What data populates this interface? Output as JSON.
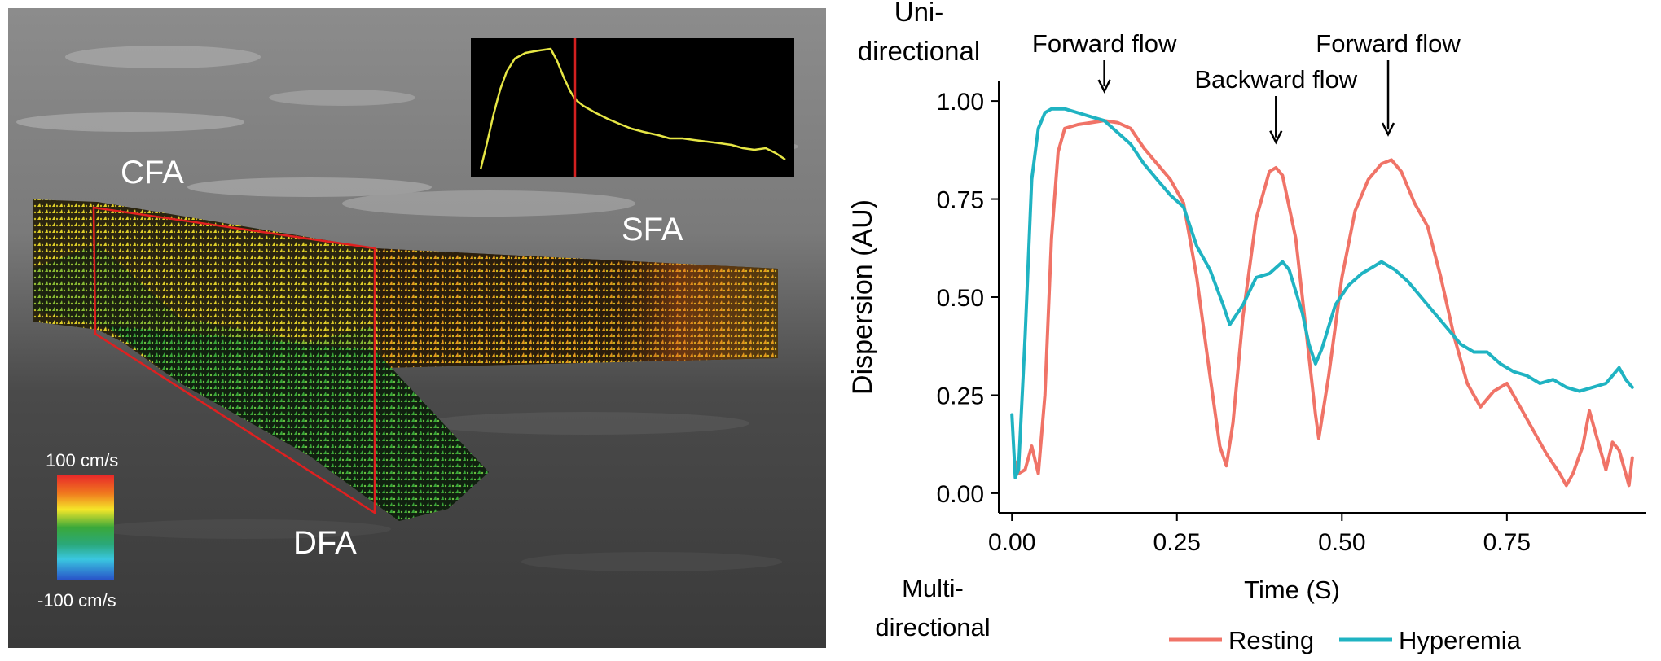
{
  "ultrasound": {
    "labels": {
      "cfa": "CFA",
      "sfa": "SFA",
      "dfa": "DFA"
    },
    "colorbar": {
      "max_label": "100 cm/s",
      "min_label": "-100 cm/s"
    },
    "colors": {
      "roi_outline": "#e02020",
      "inset_trace": "#e6e645",
      "inset_marker": "#d42020"
    }
  },
  "chart_data": {
    "type": "line",
    "xlabel": "Time (S)",
    "ylabel": "Dispersion (AU)",
    "xlim": [
      -0.02,
      0.96
    ],
    "ylim": [
      -0.05,
      1.05
    ],
    "x_ticks": [
      "0.00",
      "0.25",
      "0.50",
      "0.75"
    ],
    "y_ticks": [
      "0.00",
      "0.25",
      "0.50",
      "0.75",
      "1.00"
    ],
    "y_top_label": [
      "Uni-",
      "directional"
    ],
    "y_bottom_label": [
      "Multi-",
      "directional"
    ],
    "annotations": [
      {
        "text": "Forward flow",
        "x": 0.14,
        "y": 1.0
      },
      {
        "text": "Backward flow",
        "x": 0.4,
        "y": 0.87
      },
      {
        "text": "Forward flow",
        "x": 0.57,
        "y": 0.89
      }
    ],
    "legend": {
      "position": "bottom"
    },
    "series": [
      {
        "name": "Resting",
        "color": "#f07367",
        "points": [
          [
            0.005,
            0.08
          ],
          [
            0.01,
            0.05
          ],
          [
            0.02,
            0.06
          ],
          [
            0.03,
            0.12
          ],
          [
            0.04,
            0.05
          ],
          [
            0.05,
            0.25
          ],
          [
            0.06,
            0.65
          ],
          [
            0.07,
            0.87
          ],
          [
            0.08,
            0.93
          ],
          [
            0.1,
            0.94
          ],
          [
            0.12,
            0.945
          ],
          [
            0.14,
            0.95
          ],
          [
            0.16,
            0.945
          ],
          [
            0.18,
            0.93
          ],
          [
            0.2,
            0.88
          ],
          [
            0.22,
            0.84
          ],
          [
            0.24,
            0.8
          ],
          [
            0.26,
            0.74
          ],
          [
            0.28,
            0.55
          ],
          [
            0.3,
            0.3
          ],
          [
            0.315,
            0.12
          ],
          [
            0.325,
            0.07
          ],
          [
            0.335,
            0.18
          ],
          [
            0.35,
            0.45
          ],
          [
            0.37,
            0.7
          ],
          [
            0.39,
            0.82
          ],
          [
            0.4,
            0.83
          ],
          [
            0.41,
            0.81
          ],
          [
            0.43,
            0.65
          ],
          [
            0.45,
            0.35
          ],
          [
            0.46,
            0.2
          ],
          [
            0.465,
            0.14
          ],
          [
            0.48,
            0.3
          ],
          [
            0.5,
            0.55
          ],
          [
            0.52,
            0.72
          ],
          [
            0.54,
            0.8
          ],
          [
            0.56,
            0.84
          ],
          [
            0.575,
            0.85
          ],
          [
            0.59,
            0.82
          ],
          [
            0.61,
            0.74
          ],
          [
            0.63,
            0.68
          ],
          [
            0.65,
            0.55
          ],
          [
            0.67,
            0.4
          ],
          [
            0.69,
            0.28
          ],
          [
            0.71,
            0.22
          ],
          [
            0.73,
            0.26
          ],
          [
            0.75,
            0.28
          ],
          [
            0.77,
            0.22
          ],
          [
            0.79,
            0.16
          ],
          [
            0.81,
            0.1
          ],
          [
            0.83,
            0.05
          ],
          [
            0.84,
            0.02
          ],
          [
            0.85,
            0.05
          ],
          [
            0.865,
            0.12
          ],
          [
            0.875,
            0.21
          ],
          [
            0.885,
            0.15
          ],
          [
            0.9,
            0.06
          ],
          [
            0.91,
            0.13
          ],
          [
            0.92,
            0.11
          ],
          [
            0.93,
            0.05
          ],
          [
            0.935,
            0.02
          ],
          [
            0.94,
            0.09
          ]
        ]
      },
      {
        "name": "Hyperemia",
        "color": "#1fb3c2",
        "points": [
          [
            0.0,
            0.2
          ],
          [
            0.005,
            0.04
          ],
          [
            0.01,
            0.06
          ],
          [
            0.02,
            0.4
          ],
          [
            0.03,
            0.8
          ],
          [
            0.04,
            0.93
          ],
          [
            0.05,
            0.97
          ],
          [
            0.06,
            0.98
          ],
          [
            0.08,
            0.98
          ],
          [
            0.1,
            0.97
          ],
          [
            0.12,
            0.96
          ],
          [
            0.14,
            0.95
          ],
          [
            0.16,
            0.92
          ],
          [
            0.18,
            0.89
          ],
          [
            0.2,
            0.84
          ],
          [
            0.22,
            0.8
          ],
          [
            0.24,
            0.76
          ],
          [
            0.26,
            0.73
          ],
          [
            0.28,
            0.63
          ],
          [
            0.3,
            0.57
          ],
          [
            0.32,
            0.48
          ],
          [
            0.33,
            0.43
          ],
          [
            0.35,
            0.48
          ],
          [
            0.37,
            0.55
          ],
          [
            0.39,
            0.56
          ],
          [
            0.41,
            0.59
          ],
          [
            0.42,
            0.57
          ],
          [
            0.44,
            0.46
          ],
          [
            0.45,
            0.38
          ],
          [
            0.46,
            0.33
          ],
          [
            0.47,
            0.37
          ],
          [
            0.49,
            0.48
          ],
          [
            0.51,
            0.53
          ],
          [
            0.53,
            0.56
          ],
          [
            0.55,
            0.58
          ],
          [
            0.56,
            0.59
          ],
          [
            0.57,
            0.58
          ],
          [
            0.58,
            0.57
          ],
          [
            0.6,
            0.54
          ],
          [
            0.62,
            0.5
          ],
          [
            0.64,
            0.46
          ],
          [
            0.66,
            0.42
          ],
          [
            0.68,
            0.38
          ],
          [
            0.7,
            0.36
          ],
          [
            0.72,
            0.36
          ],
          [
            0.74,
            0.33
          ],
          [
            0.76,
            0.31
          ],
          [
            0.78,
            0.3
          ],
          [
            0.8,
            0.28
          ],
          [
            0.82,
            0.29
          ],
          [
            0.84,
            0.27
          ],
          [
            0.86,
            0.26
          ],
          [
            0.88,
            0.27
          ],
          [
            0.9,
            0.28
          ],
          [
            0.91,
            0.3
          ],
          [
            0.92,
            0.32
          ],
          [
            0.93,
            0.29
          ],
          [
            0.94,
            0.27
          ]
        ]
      }
    ]
  }
}
